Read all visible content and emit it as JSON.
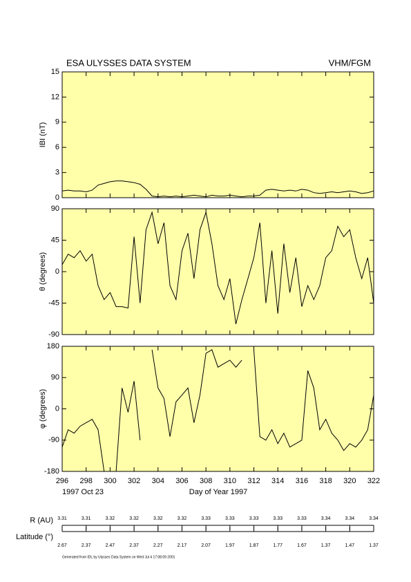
{
  "chart_data": [
    {
      "type": "line",
      "title": "ESA ULYSSES DATA SYSTEM",
      "instrument": "VHM/FGM",
      "ylabel": "IBI (nT)",
      "color": "#000000",
      "xlim": [
        296,
        322
      ],
      "xticks": [
        296,
        298,
        300,
        302,
        304,
        306,
        308,
        310,
        312,
        314,
        316,
        318,
        320,
        322
      ],
      "ylim": [
        0,
        15
      ],
      "yticks": [
        0,
        3,
        6,
        9,
        12,
        15
      ],
      "x": [
        296,
        296.5,
        297,
        297.5,
        298,
        298.5,
        299,
        299.5,
        300,
        300.5,
        301,
        301.5,
        302,
        302.5,
        303,
        303.5,
        304,
        304.5,
        305,
        305.5,
        306,
        306.5,
        307,
        307.5,
        308,
        308.5,
        309,
        309.5,
        310,
        310.5,
        311,
        311.5,
        312,
        312.5,
        313,
        313.5,
        314,
        314.5,
        315,
        315.5,
        316,
        316.5,
        317,
        317.5,
        318,
        318.5,
        319,
        319.5,
        320,
        320.5,
        321,
        321.5,
        322
      ],
      "values": [
        0.8,
        0.9,
        0.8,
        0.8,
        0.7,
        0.9,
        1.5,
        1.7,
        1.9,
        2.0,
        2.0,
        1.9,
        1.8,
        1.6,
        1.0,
        0.2,
        0.1,
        0.2,
        0.1,
        0.2,
        0.1,
        0.2,
        0.3,
        0.2,
        0.1,
        0.3,
        0.2,
        0.2,
        0.3,
        0.2,
        0.1,
        0.2,
        0.2,
        0.3,
        0.9,
        1.0,
        0.9,
        0.8,
        0.9,
        0.8,
        1.0,
        0.9,
        0.6,
        0.5,
        0.6,
        0.7,
        0.6,
        0.7,
        0.8,
        0.7,
        0.5,
        0.6,
        0.8
      ]
    },
    {
      "type": "line",
      "ylabel": "θ (degrees)",
      "color": "#000000",
      "xlim": [
        296,
        322
      ],
      "xticks": [
        296,
        298,
        300,
        302,
        304,
        306,
        308,
        310,
        312,
        314,
        316,
        318,
        320,
        322
      ],
      "ylim": [
        -90,
        90
      ],
      "yticks": [
        -90,
        -45,
        0,
        45,
        90
      ],
      "x": [
        296,
        296.5,
        297,
        297.5,
        298,
        298.5,
        299,
        299.5,
        300,
        300.5,
        301,
        301.5,
        302,
        302.5,
        303,
        303.5,
        304,
        304.5,
        305,
        305.5,
        306,
        306.5,
        307,
        307.5,
        308,
        308.5,
        309,
        309.5,
        310,
        310.5,
        311,
        311.5,
        312,
        312.5,
        313,
        313.5,
        314,
        314.5,
        315,
        315.5,
        316,
        316.5,
        317,
        317.5,
        318,
        318.5,
        319,
        319.5,
        320,
        320.5,
        321,
        321.5,
        322
      ],
      "values": [
        10,
        25,
        20,
        30,
        15,
        25,
        -20,
        -40,
        -30,
        -50,
        -50,
        -52,
        50,
        -45,
        60,
        85,
        40,
        70,
        -20,
        -40,
        30,
        55,
        -10,
        60,
        85,
        40,
        -20,
        -40,
        -10,
        -75,
        -40,
        -10,
        20,
        70,
        -45,
        30,
        -60,
        40,
        -30,
        20,
        -50,
        -20,
        -40,
        -20,
        20,
        30,
        65,
        50,
        60,
        20,
        -10,
        20,
        -45
      ]
    },
    {
      "type": "line",
      "ylabel": "φ (degrees)",
      "xlabel": "Day of Year 1997",
      "date_label": "1997 Oct 23",
      "color": "#000000",
      "xlim": [
        296,
        322
      ],
      "xticks": [
        296,
        298,
        300,
        302,
        304,
        306,
        308,
        310,
        312,
        314,
        316,
        318,
        320,
        322
      ],
      "ylim": [
        -180,
        180
      ],
      "yticks": [
        -180,
        -90,
        0,
        90,
        180
      ],
      "x": [
        296,
        296.5,
        297,
        297.5,
        298,
        298.5,
        299,
        299.5,
        300,
        300.5,
        301,
        301.5,
        302,
        302.5,
        303,
        303.5,
        304,
        304.5,
        305,
        305.5,
        306,
        306.5,
        307,
        307.5,
        308,
        308.5,
        309,
        309.5,
        310,
        310.5,
        311,
        311.5,
        312,
        312.5,
        313,
        313.5,
        314,
        314.5,
        315,
        315.5,
        316,
        316.5,
        317,
        317.5,
        318,
        318.5,
        319,
        319.5,
        320,
        320.5,
        321,
        321.5,
        322
      ],
      "values": [
        -110,
        -60,
        -70,
        -50,
        -40,
        -30,
        -60,
        -180,
        -180,
        -180,
        60,
        -10,
        80,
        -90,
        null,
        170,
        60,
        30,
        -80,
        20,
        40,
        60,
        -40,
        40,
        160,
        170,
        120,
        130,
        140,
        120,
        140,
        null,
        170,
        -80,
        -90,
        -60,
        -100,
        -70,
        -110,
        -100,
        -90,
        110,
        60,
        -60,
        -30,
        -70,
        -90,
        -120,
        -100,
        -110,
        -90,
        -60,
        40
      ]
    }
  ],
  "ephemeris": [
    {
      "label": "R (AU)",
      "values": [
        3.31,
        3.31,
        3.32,
        3.32,
        3.32,
        3.32,
        3.33,
        3.33,
        3.33,
        3.33,
        3.33,
        3.34,
        3.34,
        3.34
      ]
    },
    {
      "label": "Latitude (°)",
      "values": [
        2.67,
        2.37,
        2.47,
        2.37,
        2.27,
        2.17,
        2.07,
        1.97,
        1.87,
        1.77,
        1.67,
        1.37,
        1.47,
        1.37
      ]
    }
  ],
  "footer": "Generated from IDL by Ulysses Data System on Wed Jul 4 17:08:09 2001"
}
